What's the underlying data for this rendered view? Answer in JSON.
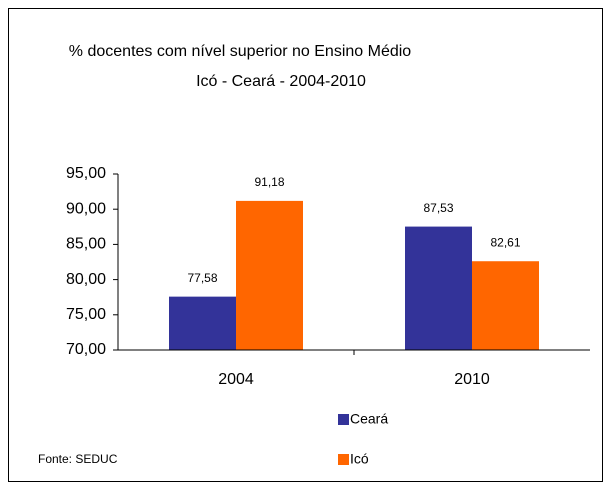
{
  "chart_data": {
    "type": "bar",
    "title": "% docentes com nível superior no Ensino Médio",
    "subtitle": "Icó - Ceará - 2004-2010",
    "categories": [
      "2004",
      "2010"
    ],
    "series": [
      {
        "name": "Ceará",
        "color": "#333399",
        "values": [
          77.58,
          87.53
        ],
        "value_labels": [
          "77,58",
          "87,53"
        ]
      },
      {
        "name": "Icó",
        "color": "#ff6600",
        "values": [
          91.18,
          82.61
        ],
        "value_labels": [
          "91,18",
          "82,61"
        ]
      }
    ],
    "ylim": [
      70,
      95
    ],
    "yticks": [
      {
        "value": 70,
        "label": "70,00"
      },
      {
        "value": 75,
        "label": "75,00"
      },
      {
        "value": 80,
        "label": "80,00"
      },
      {
        "value": 85,
        "label": "85,00"
      },
      {
        "value": 90,
        "label": "90,00"
      },
      {
        "value": 95,
        "label": "95,00"
      }
    ],
    "grid": false,
    "source": "Fonte: SEDUC"
  }
}
